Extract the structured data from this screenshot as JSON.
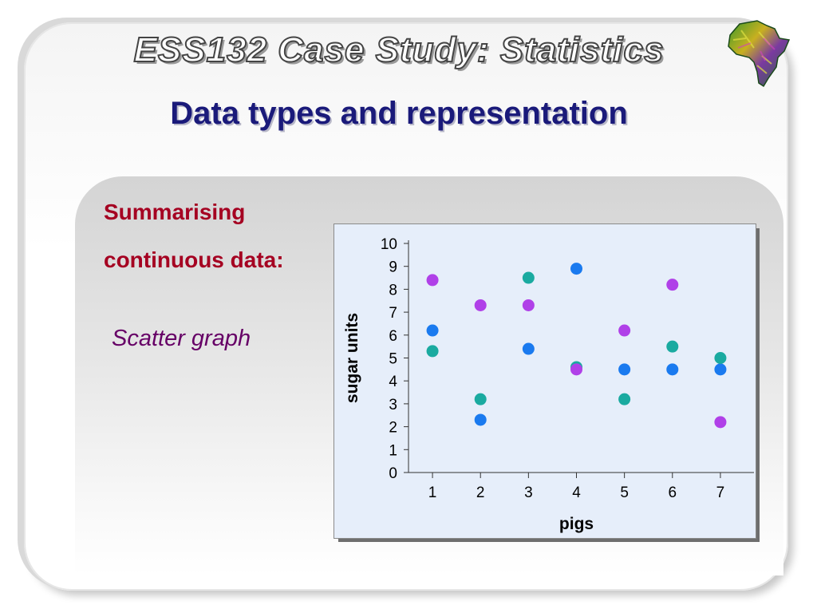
{
  "header": {
    "case_title": "ESS132 Case Study: Statistics",
    "heading": "Data types and representation",
    "logo_icon": "africa-map-icon"
  },
  "left_text": {
    "line1": "Summarising",
    "line2": "continuous data:",
    "chart_caption": "Scatter graph"
  },
  "colors": {
    "heading": "#1a1a7a",
    "summary_text": "#a50021",
    "caption": "#660066",
    "plot_bg": "#e6eefa"
  },
  "chart_data": {
    "type": "scatter",
    "xlabel": "pigs",
    "ylabel": "sugar units",
    "x_ticks": [
      "1",
      "2",
      "3",
      "4",
      "5",
      "6",
      "7"
    ],
    "y_ticks": [
      "0",
      "1",
      "2",
      "3",
      "4",
      "5",
      "6",
      "7",
      "8",
      "9",
      "10"
    ],
    "xlim": [
      0.5,
      7.5
    ],
    "ylim": [
      0,
      10
    ],
    "grid": false,
    "legend": "none",
    "series": [
      {
        "color": "#1a7aef",
        "points": [
          [
            1,
            6.2
          ],
          [
            2,
            2.3
          ],
          [
            3,
            5.4
          ],
          [
            4,
            8.9
          ],
          [
            5,
            4.5
          ],
          [
            6,
            4.5
          ],
          [
            7,
            4.5
          ]
        ]
      },
      {
        "color": "#1aaaa0",
        "points": [
          [
            1,
            5.3
          ],
          [
            2,
            3.2
          ],
          [
            3,
            8.5
          ],
          [
            4,
            4.6
          ],
          [
            5,
            3.2
          ],
          [
            6,
            5.5
          ],
          [
            7,
            5.0
          ]
        ]
      },
      {
        "color": "#b040e8",
        "points": [
          [
            1,
            8.4
          ],
          [
            2,
            7.3
          ],
          [
            3,
            7.3
          ],
          [
            4,
            4.5
          ],
          [
            5,
            6.2
          ],
          [
            6,
            8.2
          ],
          [
            7,
            2.2
          ]
        ]
      }
    ]
  }
}
